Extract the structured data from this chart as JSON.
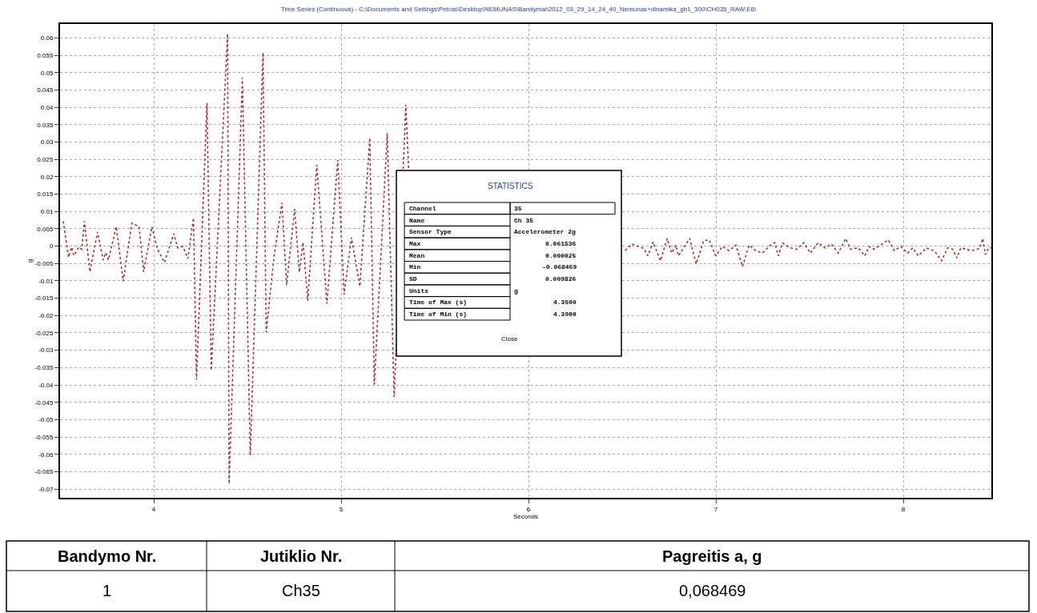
{
  "chart_data": {
    "type": "line",
    "title": "Time Series (Continuous) - C:\\Documents and Settings\\Petras\\Desktop\\NEMUNAS\\Bandymai\\2012_03_29_14_24_40_Nemunas+dinamika_gb1_300\\CH035_RAW.E6I",
    "xlabel": "Seconds",
    "ylabel": "g",
    "xlim": [
      3.5,
      8.47
    ],
    "xticks": [
      4,
      5,
      6,
      7,
      8
    ],
    "ylim": [
      -0.0725,
      0.064
    ],
    "yticks": [
      -0.07,
      -0.065,
      -0.06,
      -0.055,
      -0.05,
      -0.045,
      -0.04,
      -0.035,
      -0.03,
      -0.025,
      -0.02,
      -0.015,
      -0.01,
      -0.005,
      0,
      0.005,
      0.01,
      0.015,
      0.02,
      0.025,
      0.03,
      0.035,
      0.04,
      0.045,
      0.05,
      0.055,
      0.06
    ],
    "grid": true,
    "line_style": "dotted",
    "marker": "none",
    "series": [
      {
        "color": "#b22a2a",
        "x": [
          3.517,
          3.545,
          3.562,
          3.574,
          3.6,
          3.616,
          3.63,
          3.659,
          3.7,
          3.73,
          3.744,
          3.758,
          3.8,
          3.837,
          3.883,
          3.922,
          3.946,
          3.99,
          4.02,
          4.057,
          4.107,
          4.128,
          4.156,
          4.182,
          4.212,
          4.228,
          4.284,
          4.307,
          4.394,
          4.402,
          4.473,
          4.515,
          4.583,
          4.6,
          4.642,
          4.684,
          4.709,
          4.752,
          4.777,
          4.797,
          4.822,
          4.87,
          4.924,
          4.982,
          5.016,
          5.055,
          5.1,
          5.153,
          5.177,
          5.246,
          5.283,
          5.345,
          5.36,
          5.9,
          6.516,
          6.551,
          6.616,
          6.637,
          6.665,
          6.704,
          6.74,
          6.764,
          6.787,
          6.8,
          6.86,
          6.895,
          6.935,
          6.964,
          6.999,
          7.035,
          7.07,
          7.107,
          7.142,
          7.177,
          7.212,
          7.248,
          7.291,
          7.315,
          7.333,
          7.355,
          7.397,
          7.433,
          7.468,
          7.504,
          7.546,
          7.582,
          7.617,
          7.653,
          7.693,
          7.718,
          7.76,
          7.795,
          7.817,
          7.845,
          7.92,
          7.952,
          7.987,
          8.023,
          8.051,
          8.08,
          8.123,
          8.165,
          8.205,
          8.236,
          8.264,
          8.286,
          8.307,
          8.364,
          8.407,
          8.424,
          8.438,
          8.456,
          8.47
        ],
        "values": [
          0.0072,
          -0.0032,
          -0.0003,
          -0.0027,
          -0.0003,
          -0.0009,
          0.0072,
          -0.0074,
          0.0041,
          -0.004,
          -0.0019,
          -0.004,
          0.0056,
          -0.0101,
          0.0066,
          0.0056,
          -0.0074,
          0.0056,
          -0.0009,
          -0.0047,
          0.0036,
          -0.0005,
          -0.0001,
          -0.0036,
          0.0081,
          -0.0385,
          0.0412,
          -0.0358,
          0.0612,
          -0.0685,
          0.0485,
          -0.0603,
          0.0558,
          -0.0248,
          -0.003,
          0.0125,
          -0.0112,
          0.0107,
          -0.0075,
          0.0011,
          -0.0157,
          0.0234,
          -0.0166,
          0.0248,
          -0.0139,
          0.0025,
          -0.0116,
          0.0312,
          -0.0399,
          0.0325,
          -0.0435,
          0.0407,
          0.0225,
          null,
          -0.0013,
          0.0006,
          -0.0007,
          -0.0028,
          0.0012,
          -0.0042,
          0.0022,
          -0.002,
          0.0003,
          -0.0028,
          0.0022,
          -0.0051,
          0.0016,
          0.0018,
          -0.0028,
          -0.0001,
          -0.0013,
          0.0003,
          -0.0059,
          0.0003,
          -0.0013,
          -0.002,
          0.0003,
          0.001,
          -0.0028,
          0.0009,
          -0.0005,
          -0.0009,
          0.001,
          -0.002,
          0.001,
          -0.0005,
          0.0006,
          -0.002,
          0.0022,
          -0.0009,
          -0.0005,
          -0.0028,
          -0.0001,
          -0.0009,
          0.0018,
          -0.0013,
          -0.0001,
          -0.002,
          -0.0005,
          -0.0028,
          -0.0005,
          -0.0013,
          -0.0042,
          -0.0005,
          -0.0009,
          -0.0034,
          -0.0005,
          -0.0013,
          -0.0007,
          0.0022,
          -0.0024,
          -0.0005,
          -0.0005
        ]
      }
    ],
    "annotations": [
      "STATISTICS",
      "Channel",
      "35",
      "Name",
      "Ch 35",
      "Sensor Type",
      "Accelerometer 2g",
      "Max",
      "0.061536",
      "Mean",
      "0.000025",
      "Min",
      "-0.068469",
      "SD",
      "0.009826",
      "Units",
      "g",
      "Time of Max (s)",
      "4.3500",
      "Time of Min (s)",
      "4.3900",
      "Close",
      "Bandymo Nr.",
      "Jutiklio Nr.",
      "Pagreitis a, g",
      "1",
      "Ch35",
      "0,068469"
    ]
  }
}
